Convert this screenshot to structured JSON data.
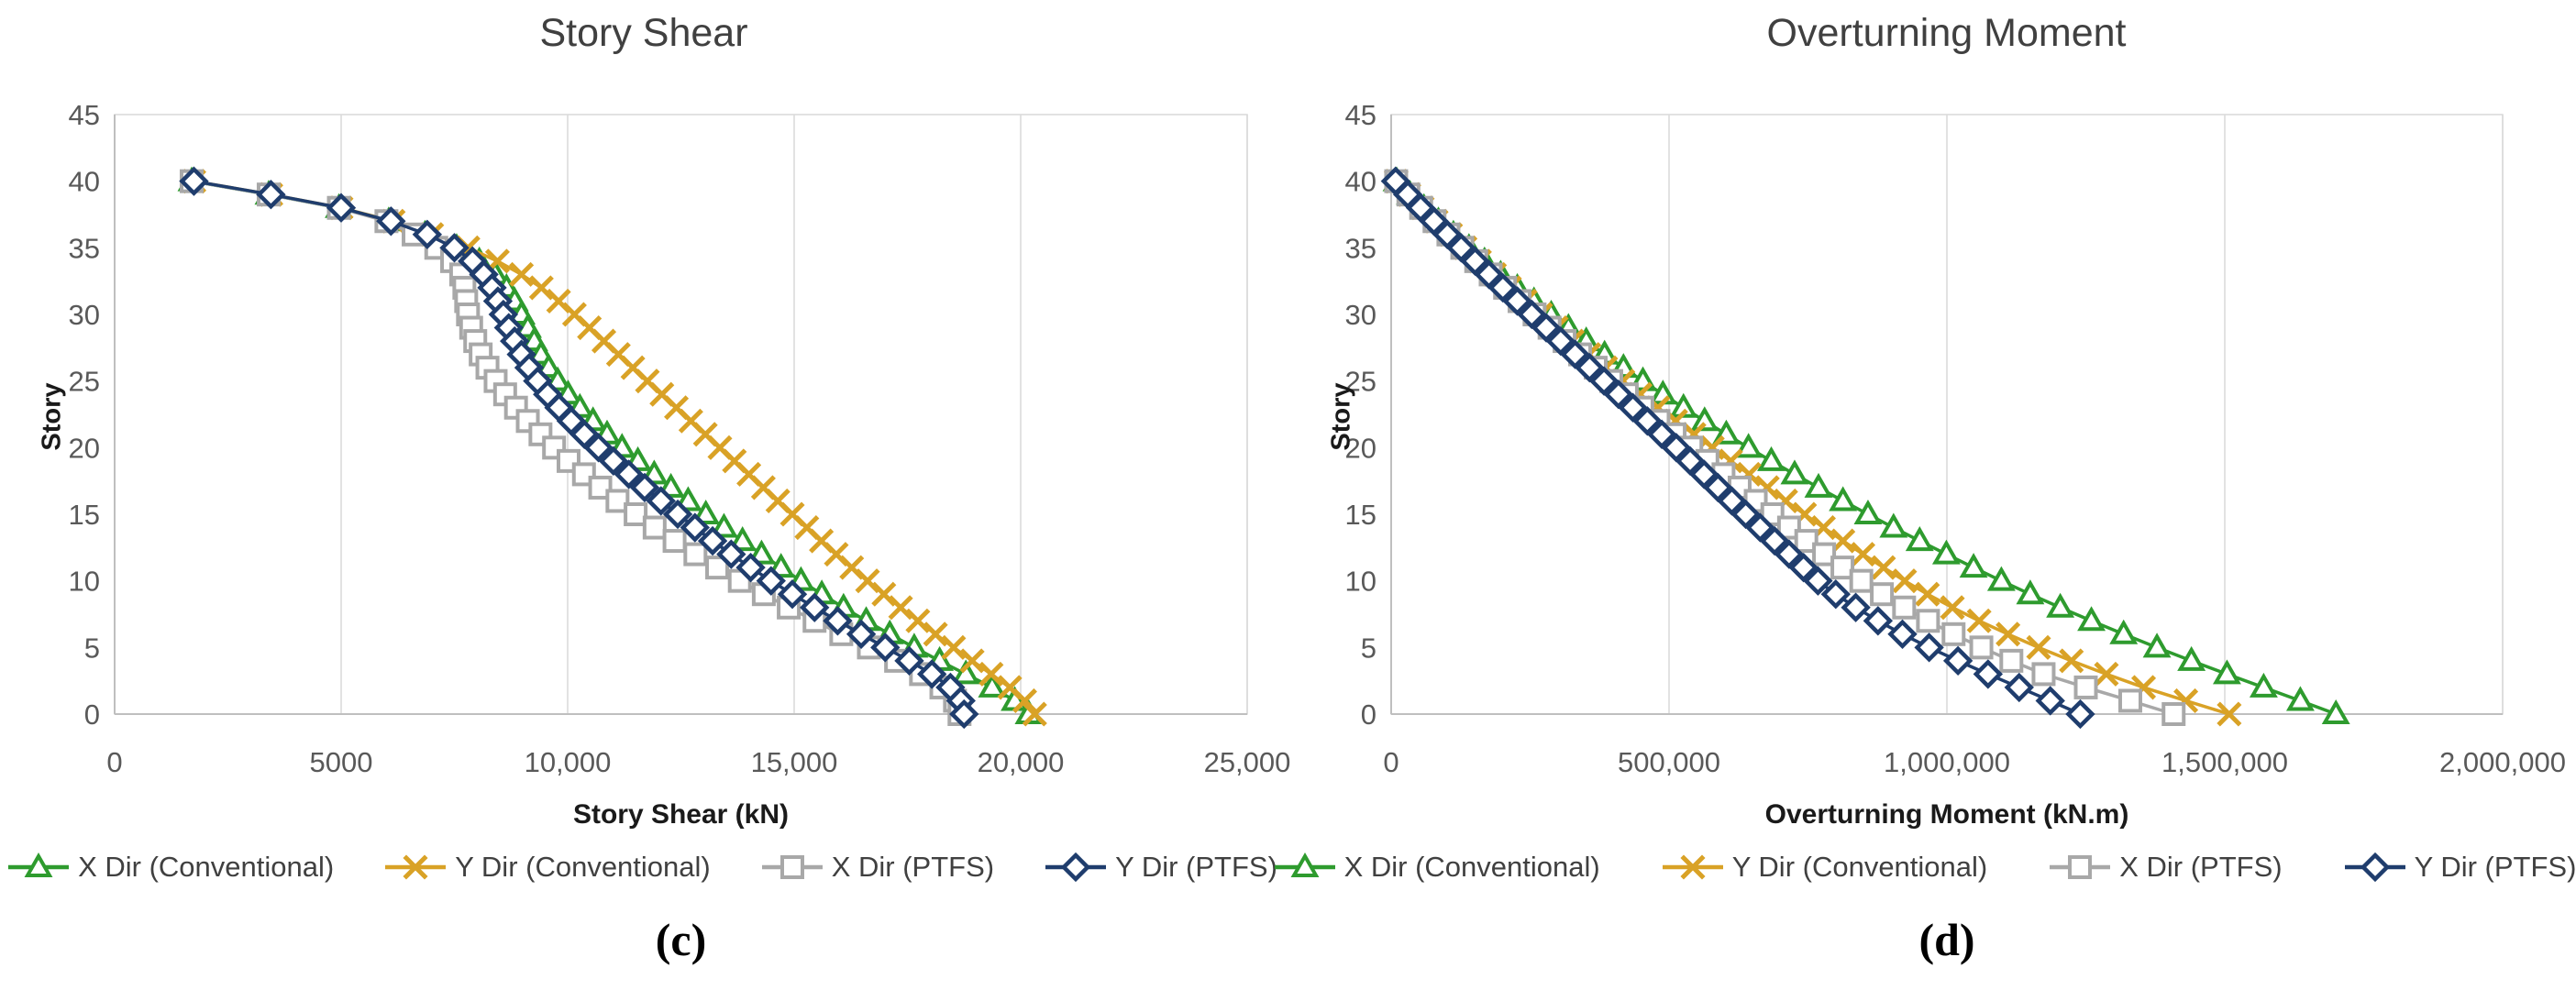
{
  "figure": {
    "background": "#ffffff",
    "colors": {
      "grid": "#d9d9d9",
      "axis_line": "#bfbfbf",
      "tick_text": "#595959",
      "title_text": "#404040",
      "axis_title_text": "#1a1a1a",
      "green": "#2e9b2e",
      "gold": "#d9a226",
      "gray": "#a8a8a8",
      "navy": "#1f3d6d"
    }
  },
  "chart_data": [
    {
      "type": "scatter",
      "title": "Story Shear",
      "xlabel": "Story Shear (kN)",
      "ylabel": "Story",
      "caption": "(c)",
      "xlim": [
        0,
        25000
      ],
      "ylim": [
        0,
        45
      ],
      "grid": "vertical",
      "legend_position": "bottom",
      "xticks": [
        0,
        5000,
        10000,
        15000,
        20000,
        25000
      ],
      "xtick_labels": [
        "0",
        "5000",
        "10,000",
        "15,000",
        "20,000",
        "25,000"
      ],
      "yticks": [
        0,
        5,
        10,
        15,
        20,
        25,
        30,
        35,
        40,
        45
      ],
      "ytick_labels": [
        "0",
        "5",
        "10",
        "15",
        "20",
        "25",
        "30",
        "35",
        "40",
        "45"
      ],
      "stories": [
        40,
        39,
        38,
        37,
        36,
        35,
        34,
        33,
        32,
        31,
        30,
        29,
        28,
        27,
        26,
        25,
        24,
        23,
        22,
        21,
        20,
        19,
        18,
        17,
        16,
        15,
        14,
        13,
        12,
        11,
        10,
        9,
        8,
        7,
        6,
        5,
        4,
        3,
        2,
        1,
        0
      ],
      "series": [
        {
          "name": "X Dir (Conventional)",
          "marker": "triangle",
          "color": "#2e9b2e",
          "values": [
            1700,
            3400,
            4950,
            6050,
            6850,
            7550,
            8050,
            8400,
            8650,
            8830,
            8980,
            9120,
            9260,
            9410,
            9580,
            9780,
            10010,
            10270,
            10560,
            10870,
            11200,
            11550,
            11910,
            12280,
            12660,
            13050,
            13450,
            13860,
            14280,
            14710,
            15150,
            15610,
            16090,
            16590,
            17110,
            17650,
            18210,
            18790,
            19370,
            19870,
            20180
          ]
        },
        {
          "name": "Y Dir (Conventional)",
          "marker": "xstar",
          "color": "#d9a226",
          "values": [
            1750,
            3450,
            5000,
            6150,
            7000,
            7800,
            8450,
            8980,
            9420,
            9800,
            10150,
            10480,
            10800,
            11120,
            11440,
            11760,
            12080,
            12400,
            12720,
            13040,
            13360,
            13680,
            14000,
            14320,
            14640,
            14960,
            15280,
            15600,
            15930,
            16270,
            16620,
            16980,
            17350,
            17730,
            18120,
            18520,
            18930,
            19350,
            19760,
            20090,
            20310
          ]
        },
        {
          "name": "X Dir (PTFS)",
          "marker": "square",
          "color": "#a8a8a8",
          "values": [
            1700,
            3400,
            4950,
            6000,
            6600,
            7100,
            7450,
            7650,
            7720,
            7760,
            7800,
            7870,
            7960,
            8080,
            8230,
            8410,
            8620,
            8860,
            9120,
            9400,
            9700,
            10020,
            10360,
            10720,
            11100,
            11500,
            11920,
            12360,
            12820,
            13300,
            13800,
            14330,
            14880,
            15450,
            16040,
            16650,
            17250,
            17800,
            18250,
            18550,
            18650
          ]
        },
        {
          "name": "Y Dir (PTFS)",
          "marker": "diamond",
          "color": "#1f3d6d",
          "values": [
            1750,
            3450,
            5000,
            6100,
            6900,
            7500,
            7900,
            8150,
            8330,
            8460,
            8580,
            8700,
            8830,
            8980,
            9150,
            9340,
            9560,
            9810,
            10080,
            10370,
            10680,
            11010,
            11350,
            11700,
            12060,
            12430,
            12810,
            13200,
            13610,
            14040,
            14490,
            14960,
            15450,
            15960,
            16480,
            17010,
            17540,
            18040,
            18450,
            18680,
            18750
          ]
        }
      ]
    },
    {
      "type": "scatter",
      "title": "Overturning Moment",
      "xlabel": "Overturning Moment (kN.m)",
      "ylabel": "Story",
      "caption": "(d)",
      "xlim": [
        0,
        2000000
      ],
      "ylim": [
        0,
        45
      ],
      "grid": "vertical",
      "legend_position": "bottom",
      "xticks": [
        0,
        500000,
        1000000,
        1500000,
        2000000
      ],
      "xtick_labels": [
        "0",
        "500,000",
        "1,000,000",
        "1,500,000",
        "2,000,000"
      ],
      "yticks": [
        0,
        5,
        10,
        15,
        20,
        25,
        30,
        35,
        40,
        45
      ],
      "ytick_labels": [
        "0",
        "5",
        "10",
        "15",
        "20",
        "25",
        "30",
        "35",
        "40",
        "45"
      ],
      "stories": [
        40,
        39,
        38,
        37,
        36,
        35,
        34,
        33,
        32,
        31,
        30,
        29,
        28,
        27,
        26,
        25,
        24,
        23,
        22,
        21,
        20,
        19,
        18,
        17,
        16,
        15,
        14,
        13,
        12,
        11,
        10,
        9,
        8,
        7,
        6,
        5,
        4,
        3,
        2,
        1,
        0
      ],
      "series": [
        {
          "name": "X Dir (Conventional)",
          "marker": "triangle",
          "color": "#2e9b2e",
          "values": [
            10000,
            34000,
            59000,
            85000,
            112000,
            140000,
            168000,
            197000,
            227000,
            257000,
            288000,
            319000,
            351000,
            384000,
            418000,
            453000,
            489000,
            526000,
            564000,
            603000,
            643000,
            684000,
            726000,
            769000,
            813000,
            858000,
            904000,
            951000,
            999000,
            1048000,
            1098000,
            1150000,
            1204000,
            1260000,
            1318000,
            1378000,
            1440000,
            1504000,
            1570000,
            1636000,
            1700000
          ]
        },
        {
          "name": "Y Dir (Conventional)",
          "marker": "xstar",
          "color": "#d9a226",
          "values": [
            9000,
            32000,
            56000,
            81000,
            107000,
            133000,
            159000,
            186000,
            213000,
            241000,
            269000,
            297000,
            326000,
            356000,
            386000,
            417000,
            448000,
            480000,
            512000,
            545000,
            578000,
            611000,
            644000,
            677000,
            710000,
            744000,
            778000,
            813000,
            849000,
            886000,
            924000,
            965000,
            1010000,
            1058000,
            1110000,
            1165000,
            1224000,
            1287000,
            1354000,
            1430000,
            1508000
          ]
        },
        {
          "name": "X Dir (PTFS)",
          "marker": "square",
          "color": "#a8a8a8",
          "values": [
            9000,
            31000,
            54000,
            78000,
            103000,
            128000,
            153000,
            179000,
            205000,
            231000,
            258000,
            285000,
            312000,
            340000,
            368000,
            396000,
            424000,
            452000,
            481000,
            510000,
            540000,
            569000,
            598000,
            627000,
            656000,
            686000,
            716000,
            747000,
            779000,
            812000,
            846000,
            883000,
            923000,
            966000,
            1012000,
            1062000,
            1116000,
            1174000,
            1250000,
            1330000,
            1408000
          ]
        },
        {
          "name": "Y Dir (PTFS)",
          "marker": "diamond",
          "color": "#1f3d6d",
          "values": [
            8000,
            30000,
            53000,
            77000,
            101000,
            126000,
            151000,
            176000,
            201000,
            227000,
            253000,
            279000,
            305000,
            331000,
            357000,
            383000,
            409000,
            435000,
            461000,
            487000,
            513000,
            538000,
            563000,
            588000,
            613000,
            638000,
            664000,
            690000,
            716000,
            742000,
            768000,
            800000,
            836000,
            876000,
            920000,
            968000,
            1020000,
            1074000,
            1130000,
            1186000,
            1240000
          ]
        }
      ]
    }
  ]
}
